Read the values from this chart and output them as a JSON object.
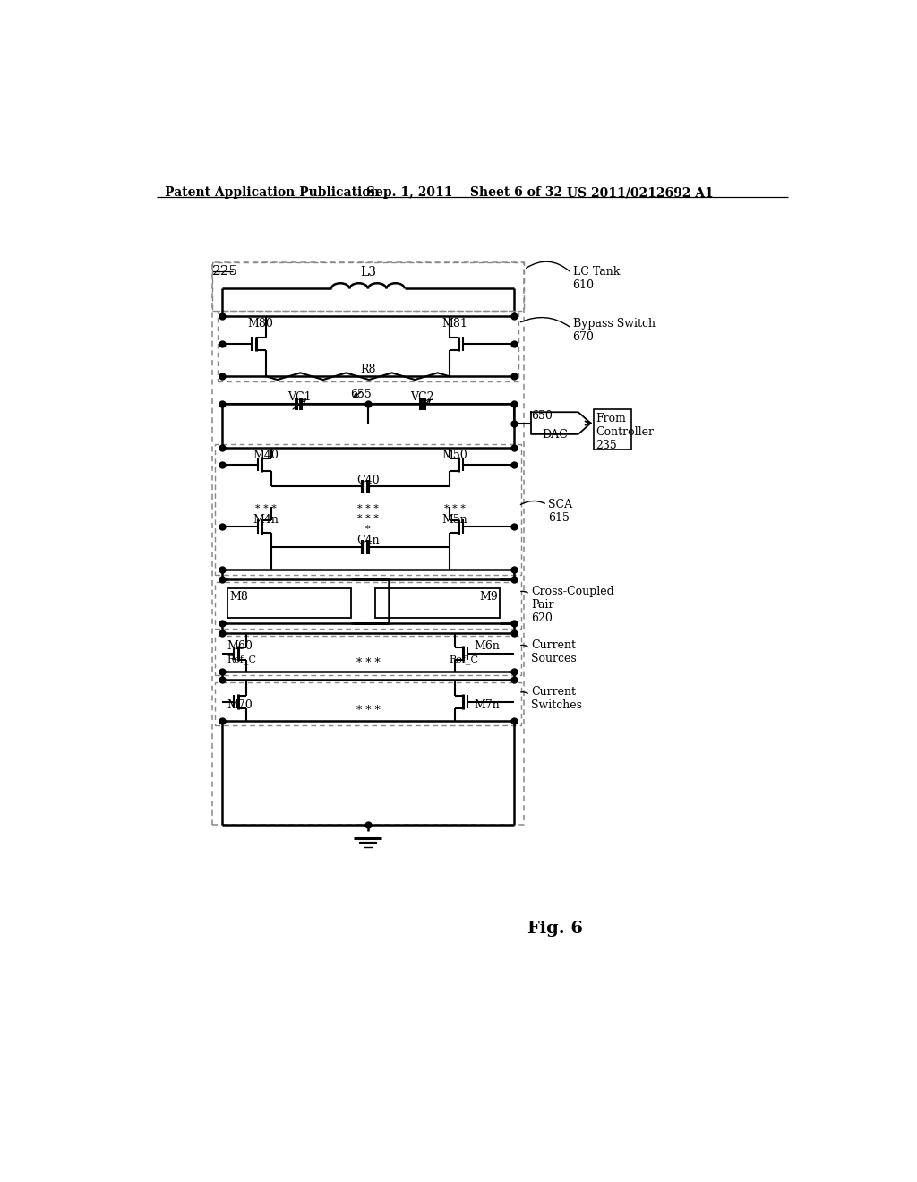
{
  "header_left": "Patent Application Publication",
  "header_mid": "Sep. 1, 2011    Sheet 6 of 32",
  "header_right": "US 2011/0212692 A1",
  "fig_label": "Fig. 6",
  "lc_tank_label": "LC Tank\n610",
  "bypass_label": "Bypass Switch\n670",
  "dac_num": "650",
  "dac_txt": "DAC",
  "from_ctrl": "From\nController\n235",
  "sca_label": "SCA\n615",
  "cc_label": "Cross-Coupled\nPair\n620",
  "cs_label": "Current\nSources",
  "csw_label": "Current\nSwitches",
  "label_225": "225"
}
